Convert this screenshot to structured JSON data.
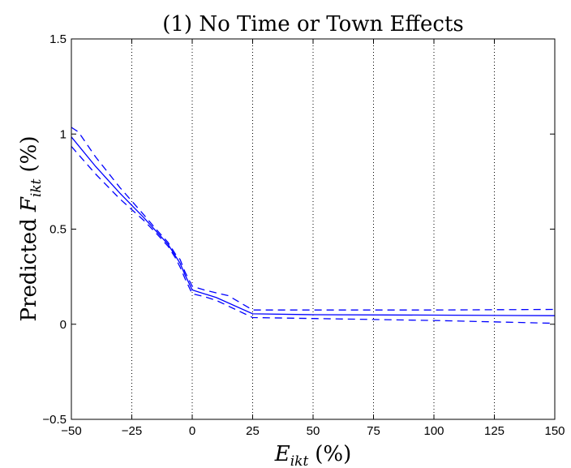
{
  "chart_data": {
    "type": "line",
    "title": "(1) No Time or Town Effects",
    "xlabel": {
      "var": "E",
      "sub": "ikt",
      "unit": "(%)"
    },
    "ylabel": {
      "prefix": "Predicted",
      "var": "F",
      "sub": "ikt",
      "unit": "(%)"
    },
    "xlim": [
      -50,
      150
    ],
    "ylim": [
      -0.5,
      1.5
    ],
    "xticks": [
      -50,
      -25,
      0,
      25,
      50,
      75,
      100,
      125,
      150
    ],
    "xtick_labels": [
      "−50",
      "−25",
      "0",
      "25",
      "50",
      "75",
      "100",
      "125",
      "150"
    ],
    "yticks": [
      -0.5,
      0,
      0.5,
      1,
      1.5
    ],
    "ytick_labels": [
      "−0.5",
      "0",
      "0.5",
      "1",
      "1.5"
    ],
    "grid": {
      "x": "dotted",
      "y": "none"
    },
    "color": "#0000ff",
    "series": [
      {
        "style": "solid",
        "x": [
          -50,
          -40,
          -30,
          -20,
          -15,
          -10,
          -7,
          -5,
          -3,
          0,
          5,
          10,
          25,
          50,
          100,
          150
        ],
        "y": [
          0.985,
          0.83,
          0.69,
          0.56,
          0.49,
          0.42,
          0.36,
          0.32,
          0.26,
          0.18,
          0.16,
          0.14,
          0.055,
          0.05,
          0.048,
          0.045
        ]
      },
      {
        "style": "dashed",
        "x": [
          -50,
          -47,
          -40,
          -30,
          -20,
          -15,
          -10,
          -7,
          -5,
          -3,
          0,
          5,
          10,
          15,
          25,
          50,
          100,
          150
        ],
        "y": [
          1.035,
          1.01,
          0.88,
          0.72,
          0.575,
          0.5,
          0.43,
          0.37,
          0.34,
          0.275,
          0.2,
          0.18,
          0.165,
          0.15,
          0.075,
          0.075,
          0.075,
          0.078
        ]
      },
      {
        "style": "dashed",
        "x": [
          -50,
          -40,
          -30,
          -20,
          -15,
          -10,
          -7,
          -5,
          -3,
          0,
          5,
          10,
          25,
          50,
          100,
          150
        ],
        "y": [
          0.935,
          0.79,
          0.66,
          0.545,
          0.48,
          0.41,
          0.35,
          0.3,
          0.24,
          0.16,
          0.145,
          0.125,
          0.035,
          0.03,
          0.02,
          0.005
        ]
      }
    ]
  }
}
